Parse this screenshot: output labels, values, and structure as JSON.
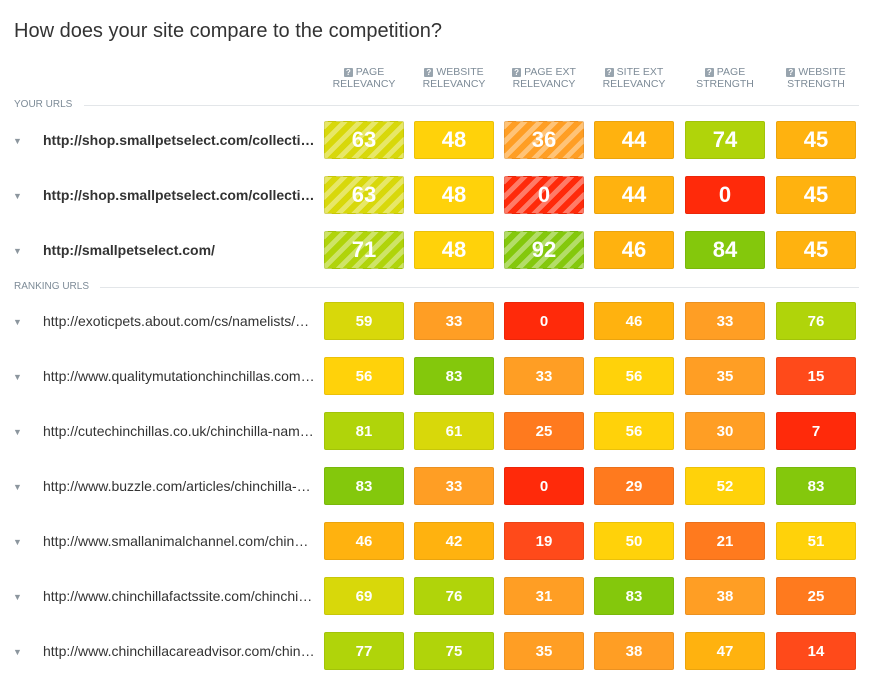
{
  "title": "How does your site compare to the competition?",
  "columns": [
    {
      "line1": "PAGE",
      "line2": "RELEVANCY"
    },
    {
      "line1": "WEBSITE",
      "line2": "RELEVANCY"
    },
    {
      "line1": "PAGE EXT",
      "line2": "RELEVANCY"
    },
    {
      "line1": "SITE EXT",
      "line2": "RELEVANCY"
    },
    {
      "line1": "PAGE",
      "line2": "STRENGTH"
    },
    {
      "line1": "WEBSITE",
      "line2": "STRENGTH"
    }
  ],
  "help_icon": "?",
  "row_expand_icon": "▼",
  "sections": {
    "your_urls": "YOUR URLS",
    "ranking_urls": "RANKING URLS"
  },
  "your_urls": [
    {
      "url": "http://shop.smallpetselect.com/collections/chinchilla",
      "values": [
        63,
        48,
        36,
        44,
        74,
        45
      ],
      "striped": [
        true,
        false,
        true,
        false,
        false,
        false
      ]
    },
    {
      "url": "http://shop.smallpetselect.com/collections/chinchilla-food",
      "values": [
        63,
        48,
        0,
        44,
        0,
        45
      ],
      "striped": [
        true,
        false,
        true,
        false,
        false,
        false
      ]
    },
    {
      "url": "http://smallpetselect.com/",
      "values": [
        71,
        48,
        92,
        46,
        84,
        45
      ],
      "striped": [
        true,
        false,
        true,
        false,
        false,
        false
      ]
    }
  ],
  "ranking_urls": [
    {
      "url": "http://exoticpets.about.com/cs/namelists/a/chinchillanames.htm",
      "values": [
        59,
        33,
        0,
        46,
        33,
        76
      ]
    },
    {
      "url": "http://www.qualitymutationchinchillas.com/names",
      "values": [
        56,
        83,
        33,
        56,
        35,
        15
      ]
    },
    {
      "url": "http://cutechinchillas.co.uk/chinchilla-names/",
      "values": [
        81,
        61,
        25,
        56,
        30,
        7
      ]
    },
    {
      "url": "http://www.buzzle.com/articles/chinchilla-names.html",
      "values": [
        83,
        33,
        0,
        29,
        52,
        83
      ]
    },
    {
      "url": "http://www.smallanimalchannel.com/chinchilla-names",
      "values": [
        46,
        42,
        19,
        50,
        21,
        51
      ]
    },
    {
      "url": "http://www.chinchillafactssite.com/chinchilla-names",
      "values": [
        69,
        76,
        31,
        83,
        38,
        25
      ]
    },
    {
      "url": "http://www.chinchillacareadvisor.com/chinchilla-names",
      "values": [
        77,
        75,
        35,
        38,
        47,
        14
      ]
    }
  ],
  "colors": {
    "score_0": "#ff2a0a",
    "score_15": "#ff4a1a",
    "score_25": "#ff7a1e",
    "score_33": "#ff9e24",
    "score_42": "#ffb20f",
    "score_50": "#ffd20a",
    "score_60": "#d8d80a",
    "score_72": "#b0d40a",
    "score_85": "#84c80c"
  }
}
